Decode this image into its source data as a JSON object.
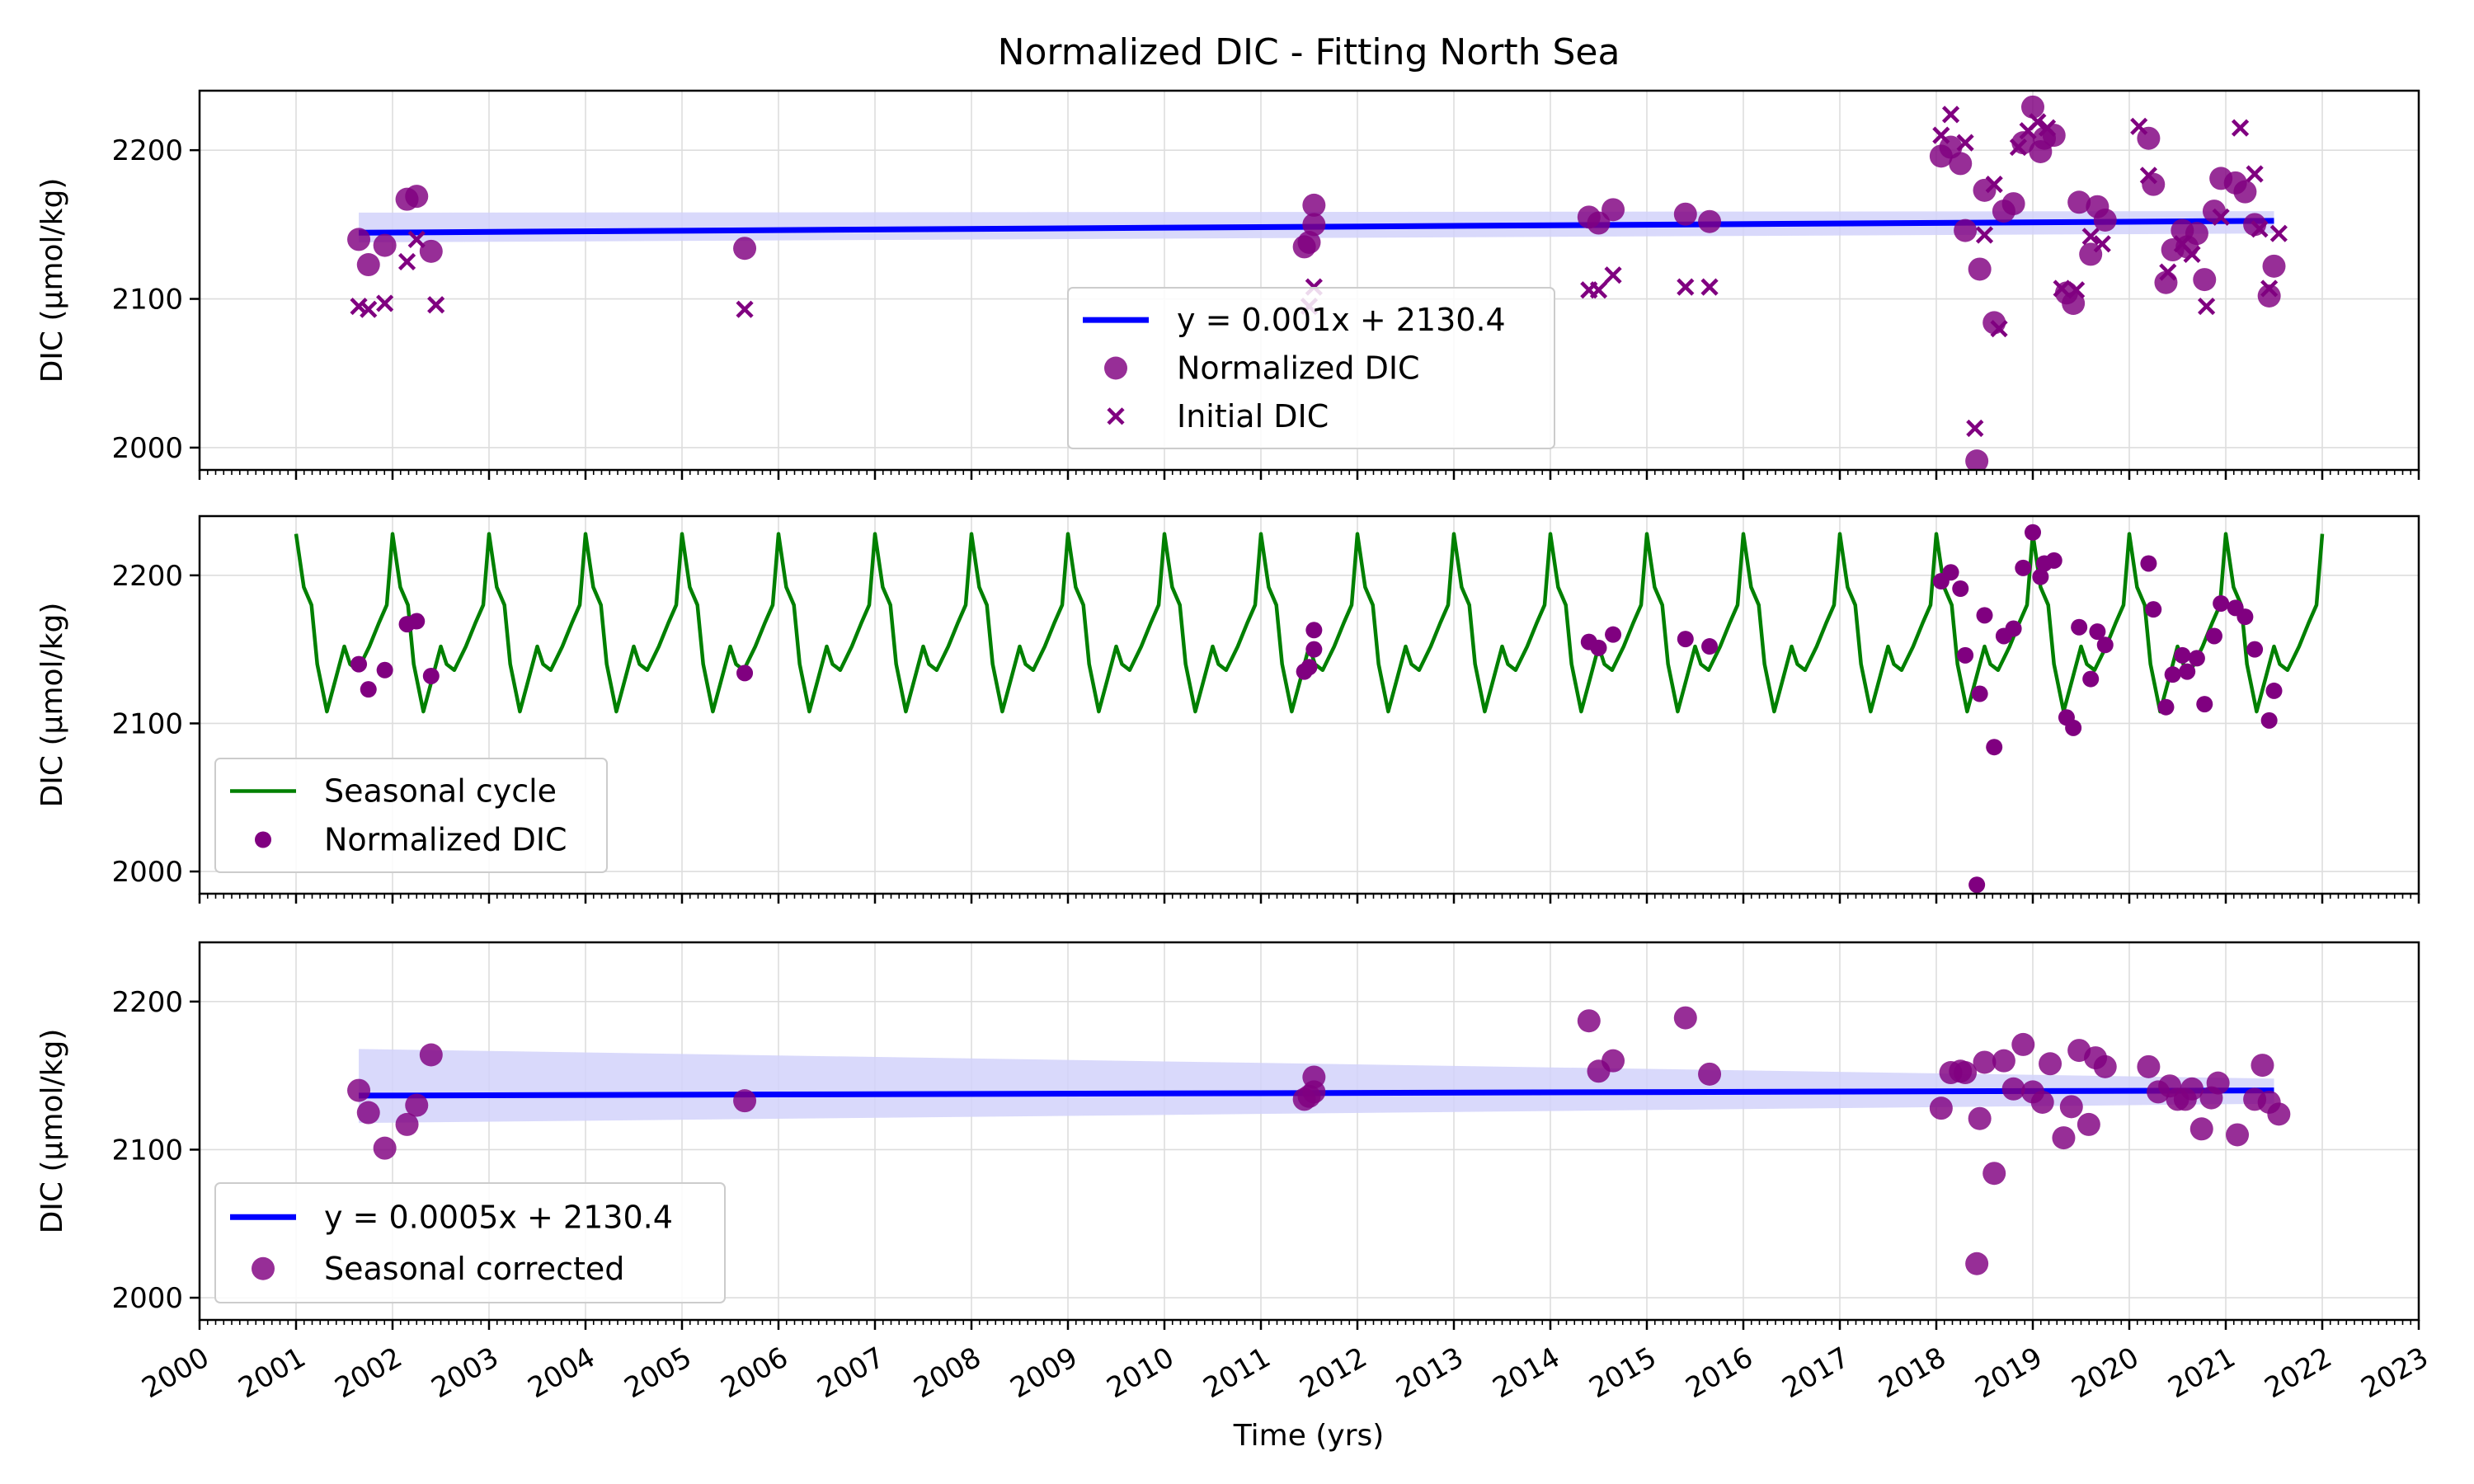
{
  "figure": {
    "title": "Normalized DIC - Fitting North Sea",
    "xlabel": "Time (yrs)",
    "ylabel": "DIC (µmol/kg)"
  },
  "colors": {
    "trend_line": "#0000ff",
    "confidence_band": "#d2d2fa",
    "points": "#800080",
    "seasonal_cycle": "#008000",
    "grid": "#dddddd"
  },
  "chart_data": [
    {
      "type": "scatter",
      "title": "Normalized DIC - Fitting North Sea",
      "xlabel": "",
      "ylabel": "DIC (µmol/kg)",
      "xlim": [
        2000.0,
        2023.0
      ],
      "ylim": [
        1985,
        2240
      ],
      "yticks": [
        2000,
        2100,
        2200
      ],
      "show_xtick_labels": false,
      "grid": true,
      "legend": {
        "placement": "lower-center",
        "entries": [
          "y = 0.001x + 2130.4",
          "Normalized DIC",
          "Initial DIC"
        ]
      },
      "series": [
        {
          "name": "y = 0.001x + 2130.4",
          "kind": "line",
          "color": "#0000ff",
          "x": [
            2001.65,
            2021.5
          ],
          "y": [
            2144.5,
            2152.5
          ],
          "band_upper": [
            2158.0,
            2159.0
          ],
          "band_lower": [
            2138.0,
            2144.0
          ]
        },
        {
          "name": "Normalized DIC",
          "kind": "scatter",
          "marker": "circle",
          "color": "#800080",
          "points": [
            [
              2001.65,
              2140
            ],
            [
              2001.75,
              2123
            ],
            [
              2001.92,
              2136
            ],
            [
              2002.15,
              2167
            ],
            [
              2002.25,
              2169
            ],
            [
              2002.4,
              2132
            ],
            [
              2005.65,
              2134
            ],
            [
              2011.45,
              2135
            ],
            [
              2011.5,
              2138
            ],
            [
              2011.55,
              2150
            ],
            [
              2011.55,
              2163
            ],
            [
              2014.4,
              2155
            ],
            [
              2014.5,
              2151
            ],
            [
              2014.65,
              2160
            ],
            [
              2015.4,
              2157
            ],
            [
              2015.65,
              2152
            ],
            [
              2018.05,
              2196
            ],
            [
              2018.15,
              2202
            ],
            [
              2018.25,
              2191
            ],
            [
              2018.3,
              2146
            ],
            [
              2018.45,
              2120
            ],
            [
              2018.5,
              2173
            ],
            [
              2018.6,
              2084
            ],
            [
              2018.7,
              2159
            ],
            [
              2018.8,
              2164
            ],
            [
              2018.9,
              2205
            ],
            [
              2019.0,
              2229
            ],
            [
              2019.08,
              2199
            ],
            [
              2019.12,
              2208
            ],
            [
              2019.22,
              2210
            ],
            [
              2018.42,
              1991
            ],
            [
              2019.35,
              2104
            ],
            [
              2019.42,
              2097
            ],
            [
              2019.48,
              2165
            ],
            [
              2019.6,
              2130
            ],
            [
              2019.67,
              2162
            ],
            [
              2019.75,
              2153
            ],
            [
              2020.2,
              2208
            ],
            [
              2020.25,
              2177
            ],
            [
              2020.38,
              2111
            ],
            [
              2020.45,
              2133
            ],
            [
              2020.55,
              2146
            ],
            [
              2020.6,
              2135
            ],
            [
              2020.7,
              2144
            ],
            [
              2020.78,
              2113
            ],
            [
              2020.88,
              2159
            ],
            [
              2020.95,
              2181
            ],
            [
              2021.1,
              2178
            ],
            [
              2021.2,
              2172
            ],
            [
              2021.3,
              2150
            ],
            [
              2021.45,
              2102
            ],
            [
              2021.5,
              2122
            ]
          ]
        },
        {
          "name": "Initial DIC",
          "kind": "scatter",
          "marker": "x",
          "color": "#800080",
          "points": [
            [
              2001.65,
              2095
            ],
            [
              2001.75,
              2093
            ],
            [
              2001.92,
              2097
            ],
            [
              2002.15,
              2125
            ],
            [
              2002.25,
              2140
            ],
            [
              2002.45,
              2096
            ],
            [
              2005.65,
              2093
            ],
            [
              2011.5,
              2095
            ],
            [
              2011.55,
              2108
            ],
            [
              2014.4,
              2106
            ],
            [
              2014.5,
              2106
            ],
            [
              2014.65,
              2116
            ],
            [
              2015.4,
              2108
            ],
            [
              2015.65,
              2108
            ],
            [
              2018.05,
              2210
            ],
            [
              2018.15,
              2224
            ],
            [
              2018.3,
              2205
            ],
            [
              2018.4,
              2013
            ],
            [
              2018.5,
              2143
            ],
            [
              2018.6,
              2177
            ],
            [
              2018.65,
              2080
            ],
            [
              2018.85,
              2202
            ],
            [
              2018.95,
              2213
            ],
            [
              2019.05,
              2219
            ],
            [
              2019.15,
              2215
            ],
            [
              2019.3,
              2107
            ],
            [
              2019.45,
              2106
            ],
            [
              2019.6,
              2142
            ],
            [
              2019.72,
              2137
            ],
            [
              2020.1,
              2216
            ],
            [
              2020.2,
              2183
            ],
            [
              2020.4,
              2118
            ],
            [
              2020.55,
              2137
            ],
            [
              2020.65,
              2130
            ],
            [
              2020.8,
              2095
            ],
            [
              2020.95,
              2155
            ],
            [
              2021.15,
              2215
            ],
            [
              2021.3,
              2184
            ],
            [
              2021.35,
              2147
            ],
            [
              2021.45,
              2107
            ],
            [
              2021.55,
              2144
            ]
          ]
        }
      ]
    },
    {
      "type": "line",
      "title": "",
      "xlabel": "",
      "ylabel": "DIC (µmol/kg)",
      "xlim": [
        2000.0,
        2023.0
      ],
      "ylim": [
        1985,
        2240
      ],
      "yticks": [
        2000,
        2100,
        2200
      ],
      "show_xtick_labels": false,
      "grid": true,
      "legend": {
        "placement": "lower-left",
        "entries": [
          "Seasonal cycle",
          "Normalized DIC"
        ]
      },
      "series": [
        {
          "name": "Seasonal cycle",
          "kind": "periodic-line",
          "color": "#008000",
          "x_range": [
            2001.0,
            2022.0
          ],
          "period_years": 1,
          "one_cycle": {
            "phase": [
              0.0,
              0.08,
              0.16,
              0.22,
              0.32,
              0.41,
              0.5,
              0.56,
              0.64,
              0.76,
              0.86,
              0.94,
              1.0
            ],
            "dic": [
              2228,
              2192,
              2180,
              2140,
              2108,
              2130,
              2152,
              2140,
              2136,
              2152,
              2168,
              2180,
              2228
            ]
          }
        },
        {
          "name": "Normalized DIC",
          "kind": "scatter",
          "marker": "dot",
          "color": "#800080",
          "points_ref": "same as panel 1 Normalized DIC"
        }
      ]
    },
    {
      "type": "scatter",
      "title": "",
      "xlabel": "Time (yrs)",
      "ylabel": "DIC (µmol/kg)",
      "xlim": [
        2000.0,
        2023.0
      ],
      "ylim": [
        1985,
        2240
      ],
      "yticks": [
        2000,
        2100,
        2200
      ],
      "show_xtick_labels": true,
      "xtick_labels": [
        "2000",
        "2001",
        "2002",
        "2003",
        "2004",
        "2005",
        "2006",
        "2007",
        "2008",
        "2009",
        "2010",
        "2011",
        "2012",
        "2013",
        "2014",
        "2015",
        "2016",
        "2017",
        "2018",
        "2019",
        "2020",
        "2021",
        "2022",
        "2023"
      ],
      "grid": true,
      "legend": {
        "placement": "lower-left",
        "entries": [
          "y = 0.0005x + 2130.4",
          "Seasonal corrected"
        ]
      },
      "series": [
        {
          "name": "y = 0.0005x + 2130.4",
          "kind": "line",
          "color": "#0000ff",
          "x": [
            2001.65,
            2021.5
          ],
          "y": [
            2136.5,
            2140.0
          ],
          "band_upper": [
            2168.0,
            2148.0
          ],
          "band_lower": [
            2118.0,
            2131.0
          ]
        },
        {
          "name": "Seasonal corrected",
          "kind": "scatter",
          "marker": "circle",
          "color": "#800080",
          "points": [
            [
              2001.65,
              2140
            ],
            [
              2001.75,
              2125
            ],
            [
              2001.92,
              2101
            ],
            [
              2002.15,
              2117
            ],
            [
              2002.25,
              2130
            ],
            [
              2002.4,
              2164
            ],
            [
              2005.65,
              2133
            ],
            [
              2011.45,
              2134
            ],
            [
              2011.5,
              2136
            ],
            [
              2011.55,
              2139
            ],
            [
              2011.55,
              2149
            ],
            [
              2014.4,
              2187
            ],
            [
              2014.5,
              2153
            ],
            [
              2014.65,
              2160
            ],
            [
              2015.4,
              2189
            ],
            [
              2015.65,
              2151
            ],
            [
              2018.05,
              2128
            ],
            [
              2018.15,
              2152
            ],
            [
              2018.25,
              2153
            ],
            [
              2018.3,
              2152
            ],
            [
              2018.45,
              2121
            ],
            [
              2018.5,
              2159
            ],
            [
              2018.42,
              2023
            ],
            [
              2018.6,
              2084
            ],
            [
              2018.7,
              2160
            ],
            [
              2018.8,
              2141
            ],
            [
              2018.9,
              2171
            ],
            [
              2019.0,
              2139
            ],
            [
              2019.1,
              2132
            ],
            [
              2019.18,
              2158
            ],
            [
              2019.32,
              2108
            ],
            [
              2019.4,
              2129
            ],
            [
              2019.48,
              2167
            ],
            [
              2019.58,
              2117
            ],
            [
              2019.65,
              2162
            ],
            [
              2019.75,
              2156
            ],
            [
              2020.2,
              2156
            ],
            [
              2020.3,
              2139
            ],
            [
              2020.42,
              2143
            ],
            [
              2020.5,
              2134
            ],
            [
              2020.58,
              2134
            ],
            [
              2020.65,
              2141
            ],
            [
              2020.75,
              2114
            ],
            [
              2020.85,
              2135
            ],
            [
              2020.92,
              2145
            ],
            [
              2021.12,
              2110
            ],
            [
              2021.3,
              2134
            ],
            [
              2021.38,
              2157
            ],
            [
              2021.45,
              2132
            ],
            [
              2021.55,
              2124
            ]
          ]
        }
      ]
    }
  ]
}
